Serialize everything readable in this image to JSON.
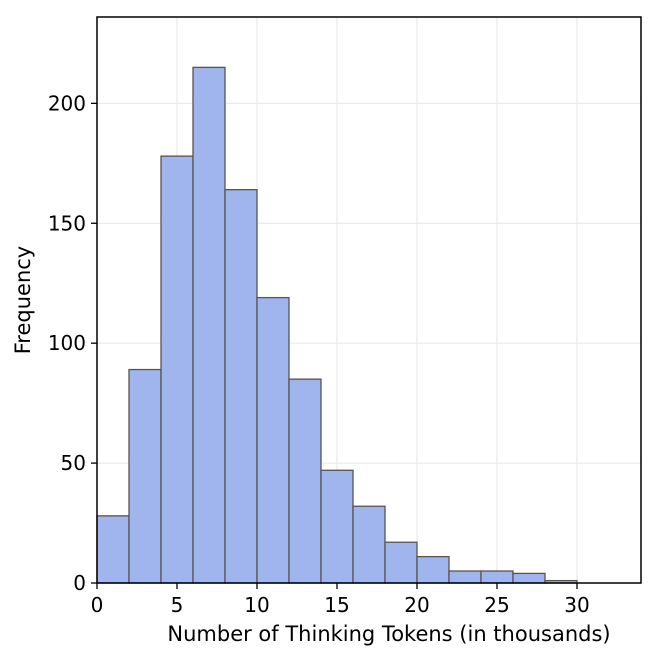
{
  "chart_data": {
    "type": "histogram",
    "xlabel": "Number of Thinking Tokens (in thousands)",
    "ylabel": "Frequency",
    "bin_edges": [
      0,
      2,
      4,
      6,
      8,
      10,
      12,
      14,
      16,
      18,
      20,
      22,
      24,
      26,
      28,
      30
    ],
    "values": [
      28,
      89,
      178,
      215,
      164,
      119,
      85,
      47,
      32,
      17,
      11,
      5,
      5,
      4,
      1
    ],
    "xlim": [
      0,
      34
    ],
    "ylim": [
      0,
      236
    ],
    "xticks": [
      0,
      5,
      10,
      15,
      20,
      25,
      30
    ],
    "yticks": [
      0,
      50,
      100,
      150,
      200
    ],
    "grid": true,
    "colors": {
      "bar_fill": "#a0b4ee",
      "bar_edge": "#555555",
      "grid": "#e6e6e6",
      "axis": "#000000"
    }
  }
}
